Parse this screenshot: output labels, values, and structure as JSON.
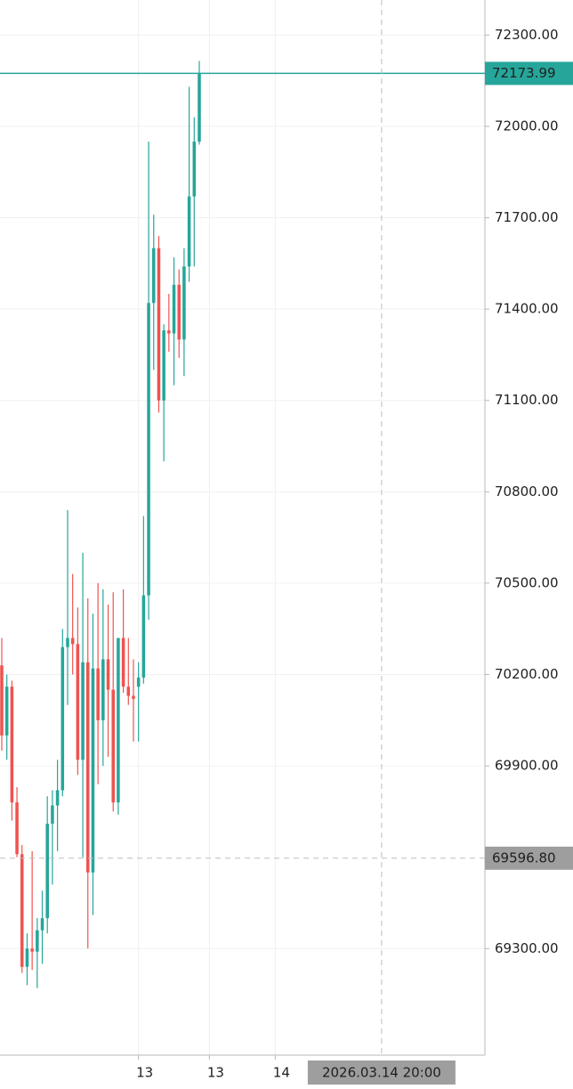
{
  "chart_data": {
    "type": "candlestick",
    "up_color": "#26a69a",
    "down_color": "#ef5350",
    "grid": true,
    "ylim": [
      68950,
      72415
    ],
    "yticks": [
      {
        "value": 69300,
        "label": "69300.00"
      },
      {
        "value": 69900,
        "label": "69900.00"
      },
      {
        "value": 70200,
        "label": "70200.00"
      },
      {
        "value": 70500,
        "label": "70500.00"
      },
      {
        "value": 70800,
        "label": "70800.00"
      },
      {
        "value": 71100,
        "label": "71100.00"
      },
      {
        "value": 71400,
        "label": "71400.00"
      },
      {
        "value": 71700,
        "label": "71700.00"
      },
      {
        "value": 72000,
        "label": "72000.00"
      },
      {
        "value": 72300,
        "label": "72300.00"
      }
    ],
    "xlim": [
      -0.35,
      95.4
    ],
    "xticks": [
      {
        "value": 27,
        "label": "13"
      },
      {
        "value": 41,
        "label": "13"
      },
      {
        "value": 54,
        "label": "14"
      }
    ],
    "open": [
      70230,
      70000,
      70160,
      69780,
      69610,
      69240,
      69300,
      69290,
      69360,
      69400,
      69710,
      69770,
      69820,
      70290,
      70320,
      70300,
      69920,
      70240,
      69550,
      70220,
      70050,
      70250,
      70150,
      69780,
      70320,
      70160,
      70130,
      70160,
      70190,
      70460,
      71420,
      71600,
      71100,
      71330,
      71320,
      71480,
      71300,
      71540,
      71770,
      71950
    ],
    "high": [
      70320,
      70200,
      70180,
      69830,
      69640,
      69350,
      69620,
      69400,
      69490,
      69800,
      69820,
      69920,
      70350,
      70740,
      70530,
      70420,
      70600,
      70450,
      70400,
      70500,
      70480,
      70430,
      70470,
      70320,
      70480,
      70320,
      70250,
      70240,
      70720,
      71950,
      71710,
      71640,
      71350,
      71450,
      71570,
      71530,
      71600,
      72130,
      72030,
      72215
    ],
    "low": [
      69950,
      69920,
      69720,
      69600,
      69220,
      69180,
      69230,
      69170,
      69250,
      69350,
      69510,
      69620,
      69800,
      70100,
      70200,
      69870,
      69600,
      69300,
      69410,
      69840,
      69900,
      69930,
      69750,
      69740,
      70140,
      70100,
      69980,
      69980,
      70170,
      70380,
      71200,
      71060,
      70900,
      71260,
      71150,
      71240,
      71180,
      71490,
      71540,
      71940
    ],
    "close": [
      70000,
      70160,
      69780,
      69610,
      69240,
      69300,
      69290,
      69360,
      69400,
      69710,
      69770,
      69820,
      70290,
      70320,
      70300,
      69920,
      70240,
      69550,
      70220,
      70050,
      70250,
      70150,
      69780,
      70320,
      70160,
      70130,
      70120,
      70190,
      70460,
      71420,
      71600,
      71100,
      71330,
      71320,
      71480,
      71300,
      71540,
      71770,
      71950,
      72173.99
    ],
    "price_line": {
      "value": 72173.99,
      "label": "72173.99",
      "color": "#26a69a"
    },
    "crosshair": {
      "x": 75,
      "value": 69596.8,
      "y_label": "69596.80",
      "x_label": "2026.03.14 20:00",
      "color": "#9e9e9e"
    }
  }
}
